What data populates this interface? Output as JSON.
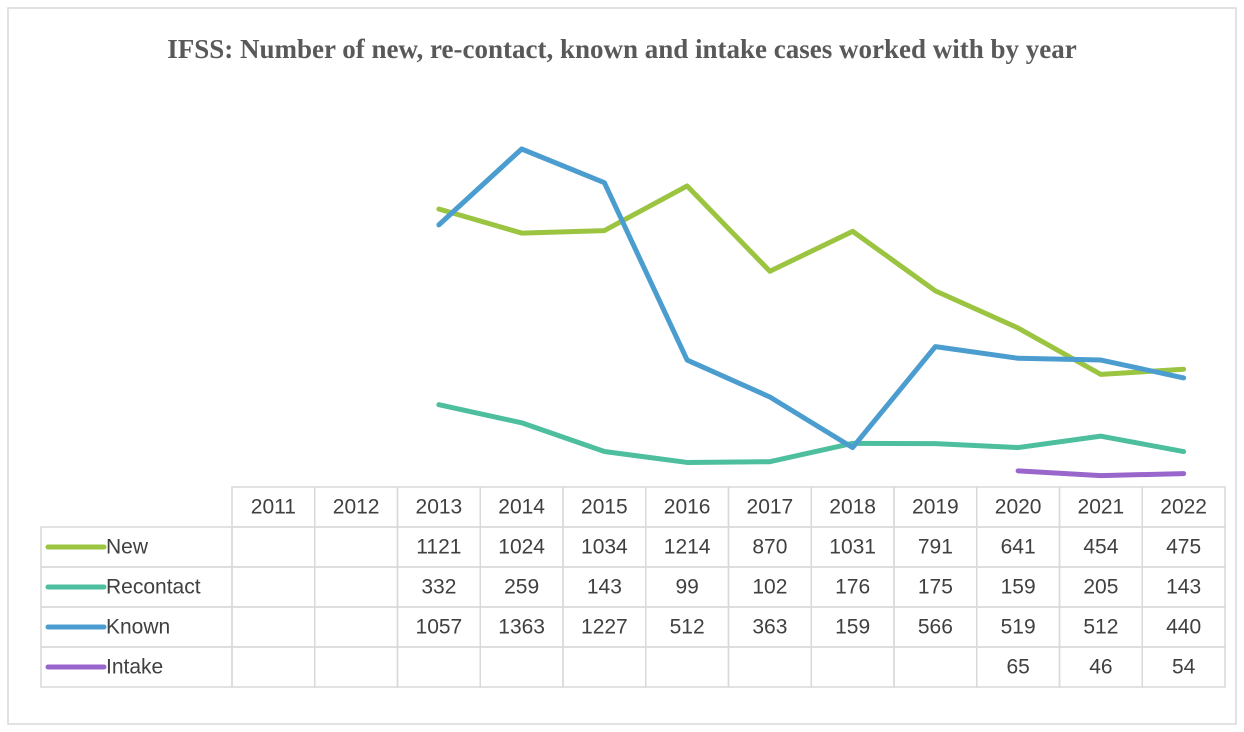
{
  "chart_data": {
    "type": "line",
    "title": "IFSS: Number of new, re-contact, known and intake cases worked with by year",
    "categories": [
      "2011",
      "2012",
      "2013",
      "2014",
      "2015",
      "2016",
      "2017",
      "2018",
      "2019",
      "2020",
      "2021",
      "2022"
    ],
    "series": [
      {
        "name": "New",
        "color": "#9bc441",
        "values": [
          null,
          null,
          1121,
          1024,
          1034,
          1214,
          870,
          1031,
          791,
          641,
          454,
          475
        ]
      },
      {
        "name": "Recontact",
        "color": "#4dbf9e",
        "values": [
          null,
          null,
          332,
          259,
          143,
          99,
          102,
          176,
          175,
          159,
          205,
          143
        ]
      },
      {
        "name": "Known",
        "color": "#4b9dd0",
        "values": [
          null,
          null,
          1057,
          1363,
          1227,
          512,
          363,
          159,
          566,
          519,
          512,
          440
        ]
      },
      {
        "name": "Intake",
        "color": "#9966cc",
        "values": [
          null,
          null,
          null,
          null,
          null,
          null,
          null,
          null,
          null,
          65,
          46,
          54
        ]
      }
    ]
  }
}
